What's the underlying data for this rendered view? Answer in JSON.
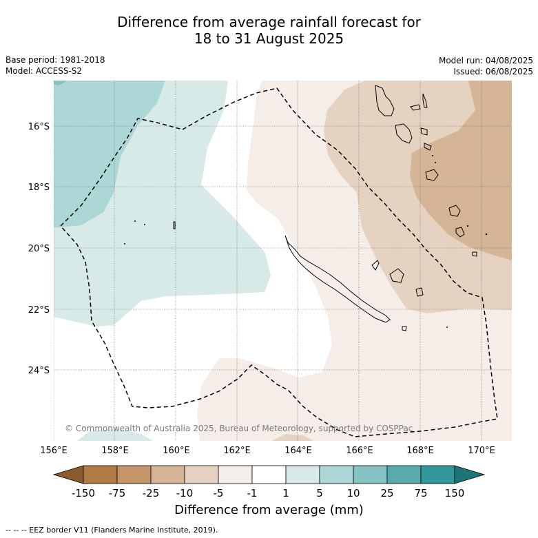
{
  "title": {
    "line1": "Difference from average rainfall forecast for",
    "line2": "18 to 31 August 2025"
  },
  "meta": {
    "base_period": "Base period: 1981-2018",
    "model": "Model: ACCESS-S2",
    "model_run": "Model run: 04/08/2025",
    "issued": "Issued: 06/08/2025"
  },
  "axes": {
    "x_ticks": [
      "156°E",
      "158°E",
      "160°E",
      "162°E",
      "164°E",
      "166°E",
      "168°E",
      "170°E"
    ],
    "y_ticks": [
      "16°S",
      "18°S",
      "20°S",
      "22°S",
      "24°S"
    ]
  },
  "colorbar": {
    "title": "Difference from average (mm)",
    "ticks": [
      "-150",
      "-75",
      "-25",
      "-10",
      "-5",
      "-1",
      "1",
      "5",
      "10",
      "25",
      "75",
      "150"
    ],
    "colors": [
      "#8c5a2e",
      "#b07a44",
      "#c4966a",
      "#d5b596",
      "#e6d2c0",
      "#f5ede7",
      "#ffffff",
      "#d7eae8",
      "#add7d6",
      "#86c2c1",
      "#59aaab",
      "#32979a",
      "#1f7479"
    ]
  },
  "copyright": "© Commonwealth of Australia 2025, Bureau of Meteorology, supported by COSPPac",
  "footnote": "--  --  -- EEZ border V11 (Flanders Marine Institute, 2019)."
}
